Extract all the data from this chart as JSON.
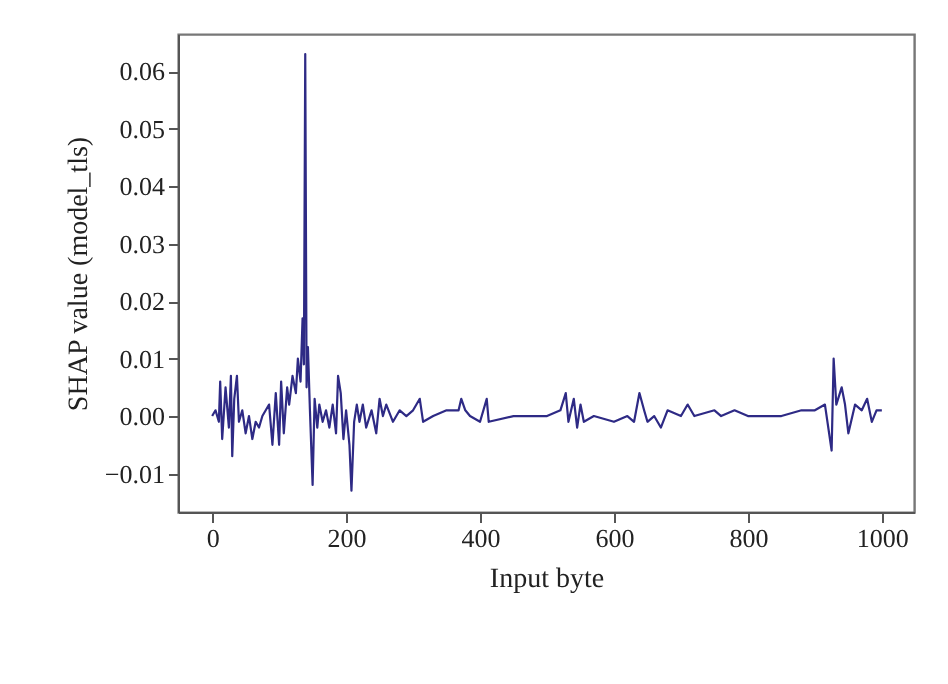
{
  "chart_data": {
    "type": "line",
    "xlabel": "Input byte",
    "ylabel": "SHAP value (model_tls)",
    "xlim": [
      -51,
      1048
    ],
    "xticks": [
      0,
      200,
      400,
      600,
      800,
      1000
    ],
    "ylim": [
      -0.0167,
      0.0665
    ],
    "yticks": [
      {
        "value": -0.01,
        "label": "−0.01"
      },
      {
        "value": 0,
        "label": "0.00"
      },
      0.01,
      0.02,
      0.03,
      0.04,
      0.05,
      0.06
    ],
    "grid": false,
    "marker": "none",
    "line_style": "solid",
    "x": [
      0,
      5,
      10,
      12,
      15,
      20,
      25,
      28,
      30,
      33,
      37,
      40,
      45,
      50,
      55,
      60,
      65,
      70,
      75,
      80,
      85,
      90,
      95,
      100,
      103,
      107,
      112,
      115,
      120,
      125,
      128,
      132,
      135,
      137,
      139,
      141,
      143,
      146,
      150,
      153,
      157,
      160,
      165,
      170,
      175,
      180,
      185,
      188,
      192,
      196,
      200,
      205,
      208,
      212,
      216,
      220,
      225,
      230,
      238,
      245,
      250,
      255,
      260,
      270,
      280,
      290,
      300,
      310,
      315,
      330,
      350,
      368,
      372,
      378,
      385,
      400,
      410,
      413,
      450,
      500,
      520,
      528,
      532,
      540,
      545,
      550,
      555,
      570,
      600,
      620,
      630,
      638,
      645,
      650,
      660,
      670,
      680,
      700,
      710,
      720,
      750,
      760,
      780,
      800,
      850,
      880,
      900,
      915,
      925,
      928,
      932,
      940,
      945,
      950,
      960,
      970,
      978,
      985,
      992,
      1000
    ],
    "series": [
      {
        "color": "#2e2a85",
        "values": [
          0,
          0.001,
          -0.001,
          0.006,
          -0.004,
          0.005,
          -0.002,
          0.007,
          -0.007,
          0.003,
          0.007,
          -0.001,
          0.001,
          -0.003,
          0,
          -0.004,
          -0.001,
          -0.002,
          0,
          0.001,
          0.002,
          -0.005,
          0.004,
          -0.005,
          0.006,
          -0.003,
          0.005,
          0.002,
          0.007,
          0.004,
          0.01,
          0.006,
          0.017,
          0.009,
          0.063,
          0.005,
          0.012,
          0.001,
          -0.012,
          0.003,
          -0.002,
          0.002,
          -0.001,
          0.001,
          -0.002,
          0.002,
          -0.003,
          0.007,
          0.004,
          -0.004,
          0.001,
          -0.005,
          -0.013,
          -0.001,
          0.002,
          -0.001,
          0.002,
          -0.002,
          0.001,
          -0.003,
          0.003,
          0,
          0.002,
          -0.001,
          0.001,
          0,
          0.001,
          0.003,
          -0.001,
          0,
          0.001,
          0.001,
          0.003,
          0.001,
          0,
          -0.001,
          0.003,
          -0.001,
          0,
          0,
          0.001,
          0.004,
          -0.001,
          0.003,
          -0.002,
          0.002,
          -0.001,
          0,
          -0.001,
          0,
          -0.001,
          0.004,
          0.001,
          -0.001,
          0,
          -0.002,
          0.001,
          0,
          0.002,
          0,
          0.001,
          0,
          0.001,
          0,
          0,
          0.001,
          0.001,
          0.002,
          -0.006,
          0.01,
          0.002,
          0.005,
          0.002,
          -0.003,
          0.002,
          0.001,
          0.003,
          -0.001,
          0.001,
          0.001
        ]
      }
    ]
  }
}
